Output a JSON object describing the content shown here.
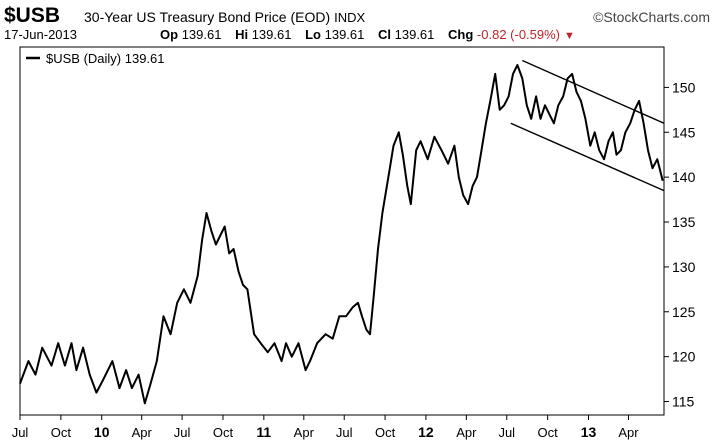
{
  "header": {
    "symbol": "$USB",
    "title": "30-Year US Treasury Bond Price (EOD)",
    "exchange": "INDX",
    "brand": "©StockCharts.com",
    "date": "17-Jun-2013",
    "open_label": "Op",
    "open": "139.61",
    "high_label": "Hi",
    "high": "139.61",
    "low_label": "Lo",
    "low": "139.61",
    "close_label": "Cl",
    "close": "139.61",
    "change_label": "Chg",
    "change": "-0.82 (-0.59%)",
    "change_color": "#c0242b"
  },
  "chart_data": {
    "type": "line",
    "legend": "$USB (Daily) 139.61",
    "legend_position": "top-left",
    "line_color": "#000000",
    "grid": false,
    "y_axis_side": "right",
    "ylim": [
      113.5,
      154.5
    ],
    "y_ticks": [
      115,
      120,
      125,
      130,
      135,
      140,
      145,
      150
    ],
    "x_range": [
      "2009-07-01",
      "2013-06-20"
    ],
    "x_ticks": [
      {
        "date": "2009-07-01",
        "label": "Jul",
        "year": false
      },
      {
        "date": "2009-10-01",
        "label": "Oct",
        "year": false
      },
      {
        "date": "2010-01-01",
        "label": "10",
        "year": true
      },
      {
        "date": "2010-04-01",
        "label": "Apr",
        "year": false
      },
      {
        "date": "2010-07-01",
        "label": "Jul",
        "year": false
      },
      {
        "date": "2010-10-01",
        "label": "Oct",
        "year": false
      },
      {
        "date": "2011-01-01",
        "label": "11",
        "year": true
      },
      {
        "date": "2011-04-01",
        "label": "Apr",
        "year": false
      },
      {
        "date": "2011-07-01",
        "label": "Jul",
        "year": false
      },
      {
        "date": "2011-10-01",
        "label": "Oct",
        "year": false
      },
      {
        "date": "2012-01-01",
        "label": "12",
        "year": true
      },
      {
        "date": "2012-04-01",
        "label": "Apr",
        "year": false
      },
      {
        "date": "2012-07-01",
        "label": "Jul",
        "year": false
      },
      {
        "date": "2012-10-01",
        "label": "Oct",
        "year": false
      },
      {
        "date": "2013-01-01",
        "label": "13",
        "year": true
      },
      {
        "date": "2013-04-01",
        "label": "Apr",
        "year": false
      }
    ],
    "series": [
      {
        "values": [
          [
            "2009-07-01",
            117.0
          ],
          [
            "2009-07-20",
            119.5
          ],
          [
            "2009-08-05",
            118.0
          ],
          [
            "2009-08-20",
            121.0
          ],
          [
            "2009-09-10",
            119.0
          ],
          [
            "2009-09-25",
            121.5
          ],
          [
            "2009-10-10",
            119.0
          ],
          [
            "2009-10-25",
            121.5
          ],
          [
            "2009-11-05",
            118.5
          ],
          [
            "2009-11-20",
            121.0
          ],
          [
            "2009-12-05",
            118.0
          ],
          [
            "2009-12-20",
            116.0
          ],
          [
            "2010-01-05",
            117.5
          ],
          [
            "2010-01-25",
            119.5
          ],
          [
            "2010-02-10",
            116.5
          ],
          [
            "2010-02-25",
            118.5
          ],
          [
            "2010-03-10",
            116.5
          ],
          [
            "2010-03-25",
            118.0
          ],
          [
            "2010-04-08",
            114.8
          ],
          [
            "2010-04-20",
            116.8
          ],
          [
            "2010-05-05",
            119.5
          ],
          [
            "2010-05-20",
            124.5
          ],
          [
            "2010-06-05",
            122.5
          ],
          [
            "2010-06-20",
            126.0
          ],
          [
            "2010-07-05",
            127.5
          ],
          [
            "2010-07-20",
            126.0
          ],
          [
            "2010-08-05",
            129.0
          ],
          [
            "2010-08-15",
            133.0
          ],
          [
            "2010-08-25",
            136.0
          ],
          [
            "2010-09-05",
            134.0
          ],
          [
            "2010-09-15",
            132.5
          ],
          [
            "2010-09-25",
            133.5
          ],
          [
            "2010-10-05",
            134.5
          ],
          [
            "2010-10-15",
            131.5
          ],
          [
            "2010-10-25",
            132.0
          ],
          [
            "2010-11-05",
            129.5
          ],
          [
            "2010-11-15",
            128.0
          ],
          [
            "2010-11-25",
            127.5
          ],
          [
            "2010-12-10",
            122.5
          ],
          [
            "2010-12-25",
            121.5
          ],
          [
            "2011-01-10",
            120.5
          ],
          [
            "2011-01-25",
            121.5
          ],
          [
            "2011-02-10",
            119.5
          ],
          [
            "2011-02-20",
            121.5
          ],
          [
            "2011-03-05",
            120.0
          ],
          [
            "2011-03-20",
            121.5
          ],
          [
            "2011-04-05",
            118.5
          ],
          [
            "2011-04-15",
            119.5
          ],
          [
            "2011-05-01",
            121.5
          ],
          [
            "2011-05-20",
            122.5
          ],
          [
            "2011-06-05",
            122.0
          ],
          [
            "2011-06-20",
            124.5
          ],
          [
            "2011-07-05",
            124.5
          ],
          [
            "2011-07-20",
            125.5
          ],
          [
            "2011-08-01",
            126.0
          ],
          [
            "2011-08-10",
            124.5
          ],
          [
            "2011-08-20",
            123.0
          ],
          [
            "2011-08-28",
            122.5
          ],
          [
            "2011-09-05",
            126.5
          ],
          [
            "2011-09-15",
            132.0
          ],
          [
            "2011-09-25",
            136.0
          ],
          [
            "2011-10-10",
            140.5
          ],
          [
            "2011-10-20",
            143.5
          ],
          [
            "2011-11-01",
            145.0
          ],
          [
            "2011-11-10",
            142.5
          ],
          [
            "2011-11-20",
            139.0
          ],
          [
            "2011-11-28",
            137.0
          ],
          [
            "2011-12-10",
            143.0
          ],
          [
            "2011-12-20",
            144.0
          ],
          [
            "2012-01-05",
            142.0
          ],
          [
            "2012-01-20",
            144.5
          ],
          [
            "2012-02-05",
            143.0
          ],
          [
            "2012-02-20",
            141.5
          ],
          [
            "2012-03-05",
            143.5
          ],
          [
            "2012-03-15",
            140.0
          ],
          [
            "2012-03-25",
            138.0
          ],
          [
            "2012-04-05",
            137.0
          ],
          [
            "2012-04-15",
            139.0
          ],
          [
            "2012-04-25",
            140.0
          ],
          [
            "2012-05-05",
            143.0
          ],
          [
            "2012-05-15",
            146.0
          ],
          [
            "2012-05-25",
            148.5
          ],
          [
            "2012-06-05",
            151.5
          ],
          [
            "2012-06-15",
            147.5
          ],
          [
            "2012-06-25",
            148.0
          ],
          [
            "2012-07-05",
            149.0
          ],
          [
            "2012-07-15",
            151.5
          ],
          [
            "2012-07-25",
            152.5
          ],
          [
            "2012-08-05",
            151.0
          ],
          [
            "2012-08-15",
            148.0
          ],
          [
            "2012-08-25",
            146.5
          ],
          [
            "2012-09-05",
            149.0
          ],
          [
            "2012-09-15",
            146.5
          ],
          [
            "2012-09-25",
            148.0
          ],
          [
            "2012-10-05",
            147.0
          ],
          [
            "2012-10-15",
            146.0
          ],
          [
            "2012-10-25",
            148.0
          ],
          [
            "2012-11-05",
            149.0
          ],
          [
            "2012-11-15",
            151.0
          ],
          [
            "2012-11-25",
            151.5
          ],
          [
            "2012-12-05",
            149.5
          ],
          [
            "2012-12-15",
            148.5
          ],
          [
            "2012-12-25",
            146.5
          ],
          [
            "2013-01-05",
            143.5
          ],
          [
            "2013-01-15",
            145.0
          ],
          [
            "2013-01-25",
            143.0
          ],
          [
            "2013-02-05",
            142.0
          ],
          [
            "2013-02-15",
            144.0
          ],
          [
            "2013-02-25",
            145.0
          ],
          [
            "2013-03-05",
            142.5
          ],
          [
            "2013-03-15",
            143.0
          ],
          [
            "2013-03-25",
            145.0
          ],
          [
            "2013-04-05",
            146.0
          ],
          [
            "2013-04-15",
            147.5
          ],
          [
            "2013-04-25",
            148.5
          ],
          [
            "2013-05-05",
            146.0
          ],
          [
            "2013-05-15",
            143.0
          ],
          [
            "2013-05-25",
            141.0
          ],
          [
            "2013-06-05",
            142.0
          ],
          [
            "2013-06-17",
            139.6
          ]
        ]
      }
    ],
    "trend_lines": [
      {
        "points": [
          [
            "2012-08-05",
            153.0
          ],
          [
            "2013-06-20",
            146.0
          ]
        ]
      },
      {
        "points": [
          [
            "2012-07-10",
            146.0
          ],
          [
            "2013-06-20",
            138.5
          ]
        ]
      }
    ]
  }
}
